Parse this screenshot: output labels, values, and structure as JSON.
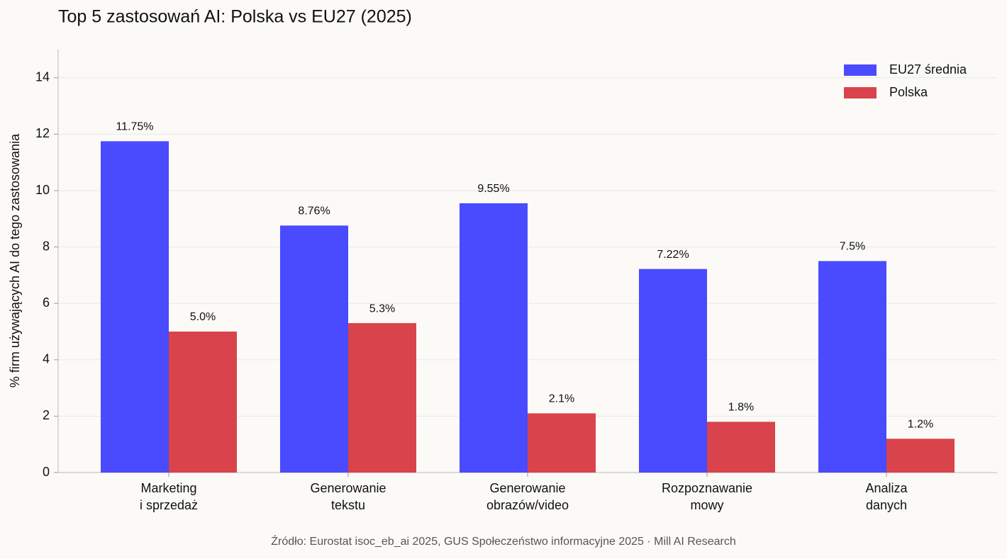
{
  "chart_data": {
    "type": "bar",
    "title": "Top 5 zastosowań AI: Polska vs EU27 (2025)",
    "y_label": "% firm używających AI do tego zastosowania",
    "source": "Źródło: Eurostat isoc_eb_ai 2025, GUS Społeczeństwo informacyjne 2025 · Mill AI Research",
    "categories": [
      [
        "Marketing",
        "i sprzedaż"
      ],
      [
        "Generowanie",
        "tekstu"
      ],
      [
        "Generowanie",
        "obrazów/video"
      ],
      [
        "Rozpoznawanie",
        "mowy"
      ],
      [
        "Analiza",
        "danych"
      ]
    ],
    "series": [
      {
        "name": "EU27 średnia",
        "color": "#4a4aff",
        "values": [
          11.75,
          8.76,
          9.55,
          7.22,
          7.5
        ],
        "value_labels": [
          "11.75%",
          "8.76%",
          "9.55%",
          "7.22%",
          "7.5%"
        ]
      },
      {
        "name": "Polska",
        "color": "#d9434b",
        "values": [
          5.0,
          5.3,
          2.1,
          1.8,
          1.2
        ],
        "value_labels": [
          "5.0%",
          "5.3%",
          "2.1%",
          "1.8%",
          "1.2%"
        ]
      }
    ],
    "ylim": [
      0,
      15
    ],
    "yticks": [
      0,
      2,
      4,
      6,
      8,
      10,
      12,
      14
    ],
    "grid": true,
    "legend": "upper right"
  }
}
